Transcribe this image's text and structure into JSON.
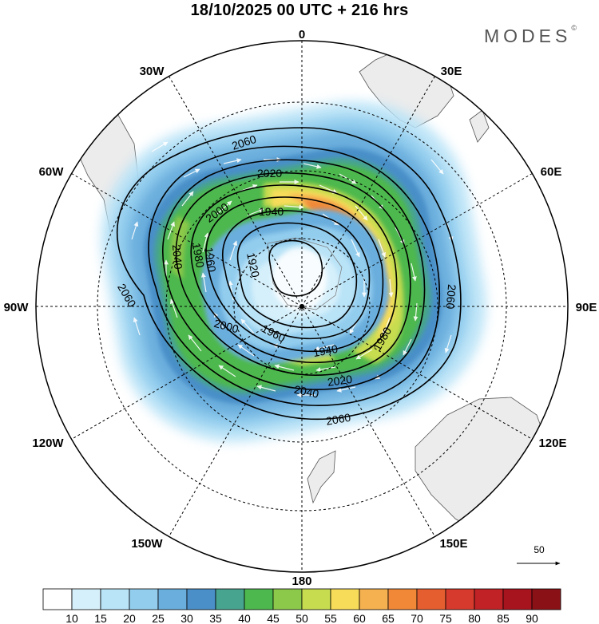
{
  "header": {
    "title": "18/10/2025  00 UTC  + 216 hrs",
    "brand": "MODES",
    "brand_mark": "©"
  },
  "map": {
    "projection": "south-polar-stereographic",
    "longitude_labels": {
      "top": "0",
      "top_right": "30E",
      "right_upper": "60E",
      "right": "90E",
      "right_lower": "120E",
      "bottom_right": "150E",
      "bottom": "180",
      "bottom_left": "150W",
      "left_lower": "120W",
      "left": "90W",
      "left_upper": "60W",
      "top_left": "30W"
    },
    "height_contours": [
      {
        "label": "2060"
      },
      {
        "label": "2040"
      },
      {
        "label": "2020"
      },
      {
        "label": "2000"
      },
      {
        "label": "1980"
      },
      {
        "label": "1960"
      },
      {
        "label": "1940"
      },
      {
        "label": "1920"
      }
    ],
    "contour_label_text": {
      "c2060a": "2060",
      "c2060b": "2060",
      "c2060c": "2060",
      "c2060d": "2060",
      "c2040a": "2040",
      "c2040b": "2040",
      "c2020a": "2020",
      "c2020b": "2020",
      "c2000a": "2000",
      "c2000b": "2000",
      "c1980a": "1980",
      "c1980b": "1980",
      "c1960a": "1960",
      "c1960b": "1960",
      "c1940a": "1940",
      "c1940b": "1940",
      "c1920a": "1920"
    }
  },
  "wind_reference": {
    "value": "50"
  },
  "colorbar": {
    "colors": [
      "#ffffff",
      "#d6f0fb",
      "#b9e3f7",
      "#93cdee",
      "#6aaedd",
      "#4a8fc8",
      "#47a48f",
      "#4db84d",
      "#8cc84a",
      "#c8dc50",
      "#f7dc5a",
      "#f5b050",
      "#f08838",
      "#e55e30",
      "#d63a2c",
      "#c02226",
      "#a8141e",
      "#8a1216"
    ],
    "labels": [
      "10",
      "15",
      "20",
      "25",
      "30",
      "35",
      "40",
      "45",
      "50",
      "55",
      "60",
      "65",
      "70",
      "75",
      "80",
      "85",
      "90"
    ]
  }
}
